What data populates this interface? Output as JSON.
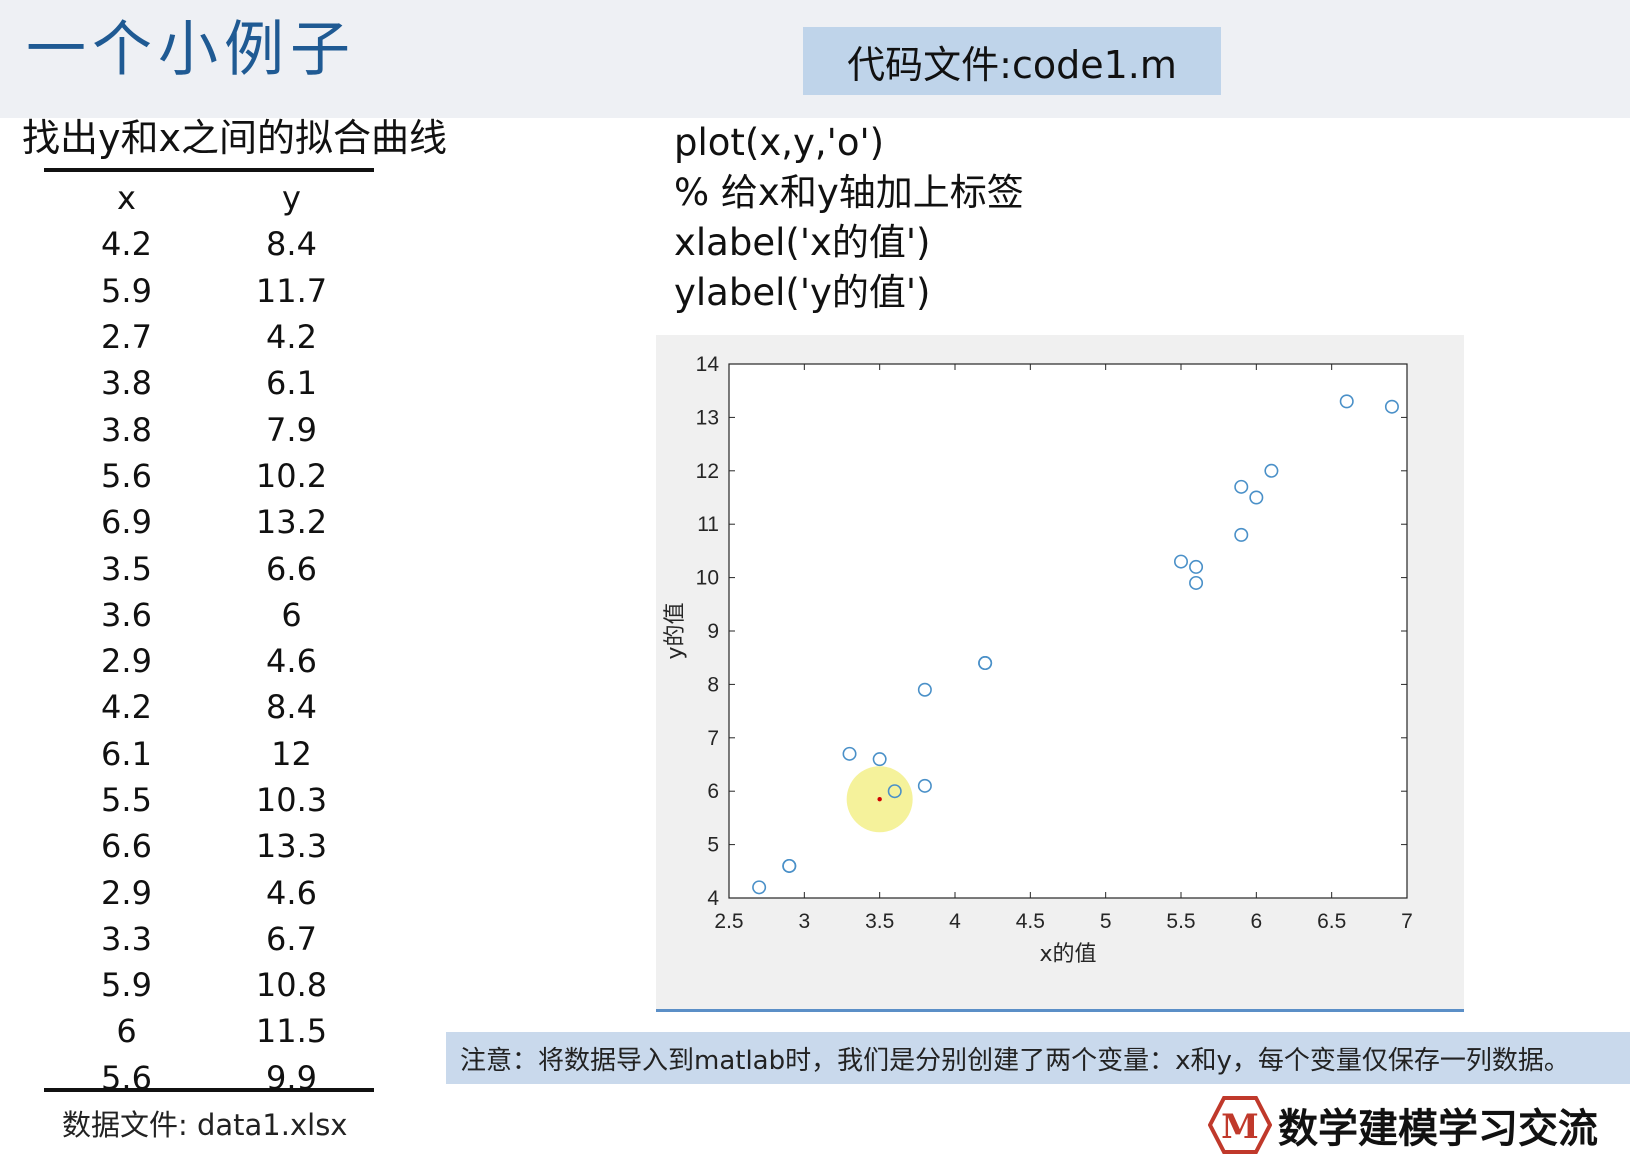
{
  "slide": {
    "title": "一个小例子",
    "code_file": "代码文件:code1.m",
    "task": "找出y和x之间的拟合曲线",
    "data_file_note": "数据文件:   data1.xlsx",
    "note": "注意：将数据导入到matlab时，我们是分别创建了两个变量：x和y，每个变量仅保存一列数据。",
    "brand": "数学建模学习交流",
    "brand_logo_letter": "M"
  },
  "table": {
    "headers": [
      "x",
      "y"
    ],
    "rows": [
      [
        "4.2",
        "8.4"
      ],
      [
        "5.9",
        "11.7"
      ],
      [
        "2.7",
        "4.2"
      ],
      [
        "3.8",
        "6.1"
      ],
      [
        "3.8",
        "7.9"
      ],
      [
        "5.6",
        "10.2"
      ],
      [
        "6.9",
        "13.2"
      ],
      [
        "3.5",
        "6.6"
      ],
      [
        "3.6",
        "6"
      ],
      [
        "2.9",
        "4.6"
      ],
      [
        "4.2",
        "8.4"
      ],
      [
        "6.1",
        "12"
      ],
      [
        "5.5",
        "10.3"
      ],
      [
        "6.6",
        "13.3"
      ],
      [
        "2.9",
        "4.6"
      ],
      [
        "3.3",
        "6.7"
      ],
      [
        "5.9",
        "10.8"
      ],
      [
        "6",
        "11.5"
      ],
      [
        "5.6",
        "9.9"
      ]
    ]
  },
  "code": {
    "lines": [
      "plot(x,y,'o')",
      "% 给x和y轴加上标签",
      "xlabel('x的值')",
      "ylabel('y的值')"
    ]
  },
  "chart_data": {
    "type": "scatter",
    "xlabel": "x的值",
    "ylabel": "y的值",
    "xlim": [
      2.5,
      7
    ],
    "ylim": [
      4,
      14
    ],
    "xticks": [
      "2.5",
      "3",
      "3.5",
      "4",
      "4.5",
      "5",
      "5.5",
      "6",
      "6.5",
      "7"
    ],
    "yticks": [
      "4",
      "5",
      "6",
      "7",
      "8",
      "9",
      "10",
      "11",
      "12",
      "13",
      "14"
    ],
    "points": [
      [
        4.2,
        8.4
      ],
      [
        5.9,
        11.7
      ],
      [
        2.7,
        4.2
      ],
      [
        3.8,
        6.1
      ],
      [
        3.8,
        7.9
      ],
      [
        5.6,
        10.2
      ],
      [
        6.9,
        13.2
      ],
      [
        3.5,
        6.6
      ],
      [
        3.6,
        6
      ],
      [
        2.9,
        4.6
      ],
      [
        4.2,
        8.4
      ],
      [
        6.1,
        12
      ],
      [
        5.5,
        10.3
      ],
      [
        6.6,
        13.3
      ],
      [
        2.9,
        4.6
      ],
      [
        3.3,
        6.7
      ],
      [
        5.9,
        10.8
      ],
      [
        6,
        11.5
      ],
      [
        5.6,
        9.9
      ]
    ],
    "marker_color": "#4a90c8",
    "cursor_highlight": [
      3.5,
      5.85
    ]
  }
}
